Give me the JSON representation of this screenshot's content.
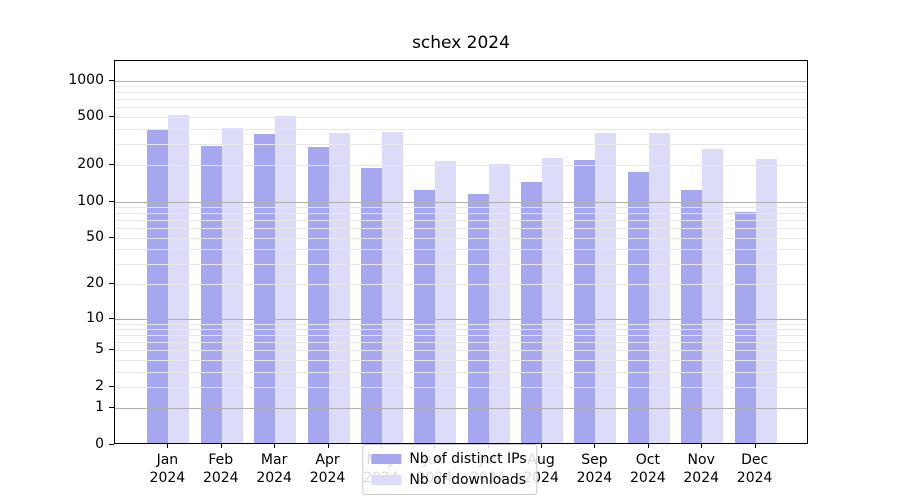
{
  "title": "schex 2024",
  "chart_data": {
    "type": "bar",
    "title": "schex 2024",
    "categories": [
      "Jan",
      "Feb",
      "Mar",
      "Apr",
      "May",
      "Jun",
      "Jul",
      "Aug",
      "Sep",
      "Oct",
      "Nov",
      "Dec"
    ],
    "year": "2024",
    "series": [
      {
        "name": "Nb of distinct IPs",
        "color": "#a7a7ef",
        "values": [
          385,
          278,
          350,
          273,
          184,
          120,
          112,
          140,
          211,
          168,
          121,
          79
        ]
      },
      {
        "name": "Nb of downloads",
        "color": "#dcdcf9",
        "values": [
          505,
          388,
          489,
          359,
          366,
          208,
          198,
          220,
          357,
          355,
          265,
          215
        ]
      }
    ],
    "xlabel": "",
    "ylabel": "",
    "yscale": "log1p",
    "ylim": [
      0,
      1450
    ],
    "yticks": [
      0,
      1,
      2,
      5,
      10,
      20,
      50,
      100,
      200,
      500,
      1000
    ],
    "major_gridlines": [
      1,
      10,
      100,
      1000
    ],
    "grid": true,
    "legend_position": "lower center"
  },
  "colors": {
    "major_grid": "#b0b0b0",
    "minor_grid": "#e7e7e7",
    "axis": "#000000",
    "background": "#ffffff"
  }
}
